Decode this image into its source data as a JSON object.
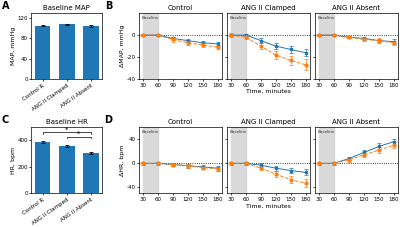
{
  "chart_data": [
    {
      "type": "bar",
      "title": "Baseline MAP",
      "ylabel": "MAP, mmHg",
      "categories": [
        "Control R",
        "ANG II Clamped",
        "ANG II Absent"
      ],
      "values": [
        105,
        108,
        104
      ],
      "errors": [
        1.5,
        1.2,
        1.8
      ],
      "ylim": [
        0,
        130
      ],
      "yticks": [
        0,
        40,
        80,
        120
      ],
      "annotations": [
        {
          "text": "A"
        }
      ]
    },
    {
      "type": "line",
      "title": "Control",
      "ylabel": "ΔMAP, mmHg",
      "x": [
        30,
        60,
        90,
        120,
        150,
        180
      ],
      "xlim": [
        22,
        188
      ],
      "xticks": [
        30,
        60,
        90,
        120,
        150,
        180
      ],
      "ylim": [
        -40,
        20
      ],
      "yticks": [
        -40,
        -20,
        0
      ],
      "reference_y": 0,
      "series": [
        {
          "marker": "square",
          "line_style": "solid",
          "values": [
            0,
            0,
            -3,
            -5,
            -7,
            -8
          ],
          "errors": [
            1,
            1,
            1.5,
            1.5,
            2,
            2
          ]
        },
        {
          "marker": "circle",
          "line_style": "dashed",
          "values": [
            0,
            0,
            -4,
            -7,
            -9,
            -11
          ],
          "errors": [
            1,
            1,
            2,
            2,
            2,
            2
          ]
        }
      ],
      "annotations": [
        {
          "text": "Baseline",
          "x": [
            30,
            60
          ]
        },
        {
          "text": "B"
        }
      ]
    },
    {
      "type": "line",
      "title": "ANG II Clamped",
      "xlabel": "Time, minutes",
      "tick_labels": "x",
      "x": [
        30,
        60,
        90,
        120,
        150,
        180
      ],
      "xlim": [
        22,
        188
      ],
      "xticks": [
        30,
        60,
        90,
        120,
        150,
        180
      ],
      "ylim": [
        -40,
        20
      ],
      "yticks": [
        -40,
        -20,
        0
      ],
      "reference_y": 0,
      "series": [
        {
          "marker": "square",
          "line_style": "solid",
          "values": [
            0,
            0,
            -5,
            -10,
            -13,
            -16
          ],
          "errors": [
            1,
            1,
            2,
            2.5,
            3,
            3
          ]
        },
        {
          "marker": "circle",
          "line_style": "dashed",
          "values": [
            0,
            -2,
            -10,
            -18,
            -23,
            -27
          ],
          "errors": [
            2,
            2,
            3,
            4,
            4,
            5
          ]
        }
      ],
      "annotations": [
        {
          "text": "Baseline",
          "x": [
            30,
            60
          ]
        }
      ]
    },
    {
      "type": "line",
      "title": "ANG II Absent",
      "tick_labels": "x",
      "x": [
        30,
        60,
        90,
        120,
        150,
        180
      ],
      "xlim": [
        22,
        188
      ],
      "xticks": [
        30,
        60,
        90,
        120,
        150,
        180
      ],
      "ylim": [
        -40,
        20
      ],
      "yticks": [
        -40,
        -20,
        0
      ],
      "reference_y": 0,
      "series": [
        {
          "marker": "square",
          "line_style": "solid",
          "values": [
            0,
            0,
            -2,
            -3,
            -5,
            -6
          ],
          "errors": [
            1,
            1,
            1,
            1.5,
            1.5,
            2
          ]
        },
        {
          "marker": "circle",
          "line_style": "dashed",
          "values": [
            0,
            0,
            -2,
            -4,
            -5,
            -7
          ],
          "errors": [
            1,
            1,
            1,
            1.5,
            2,
            2
          ]
        }
      ],
      "annotations": [
        {
          "text": "Baseline",
          "x": [
            30,
            60
          ]
        }
      ]
    },
    {
      "type": "bar",
      "title": "Baseline HR",
      "ylabel": "HR, bpm",
      "categories": [
        "Control R",
        "ANG II Clamped",
        "ANG II Absent"
      ],
      "values": [
        390,
        360,
        305
      ],
      "errors": [
        8,
        7,
        10
      ],
      "ylim": [
        0,
        500
      ],
      "yticks": [
        0,
        200,
        400
      ],
      "annotations": [
        {
          "text": "C"
        },
        {
          "text": "*",
          "between": [
            "Control R",
            "ANG II Absent"
          ],
          "y": 450,
          "height": 10
        },
        {
          "text": "*",
          "between": [
            "ANG II Clamped",
            "ANG II Absent"
          ],
          "y": 415,
          "height": 10
        }
      ]
    },
    {
      "type": "line",
      "title": "Control",
      "ylabel": "ΔHR, bpm",
      "x": [
        30,
        60,
        90,
        120,
        150,
        180
      ],
      "xlim": [
        22,
        188
      ],
      "xticks": [
        30,
        60,
        90,
        120,
        150,
        180
      ],
      "ylim": [
        -50,
        60
      ],
      "yticks": [
        -40,
        0,
        40
      ],
      "reference_y": 0,
      "series": [
        {
          "marker": "square",
          "line_style": "solid",
          "values": [
            0,
            0,
            -2,
            -4,
            -6,
            -8
          ],
          "errors": [
            2,
            2,
            2,
            3,
            3,
            4
          ]
        },
        {
          "marker": "circle",
          "line_style": "dashed",
          "values": [
            0,
            0,
            -2,
            -4,
            -7,
            -9
          ],
          "errors": [
            2,
            2,
            2,
            3,
            3,
            3
          ]
        }
      ],
      "annotations": [
        {
          "text": "Baseline",
          "x": [
            30,
            60
          ]
        },
        {
          "text": "D"
        }
      ]
    },
    {
      "type": "line",
      "title": "ANG II Clamped",
      "xlabel": "Time, minutes",
      "tick_labels": "x",
      "x": [
        30,
        60,
        90,
        120,
        150,
        180
      ],
      "xlim": [
        22,
        188
      ],
      "xticks": [
        30,
        60,
        90,
        120,
        150,
        180
      ],
      "ylim": [
        -50,
        60
      ],
      "yticks": [
        -40,
        0,
        40
      ],
      "reference_y": 0,
      "series": [
        {
          "marker": "square",
          "line_style": "solid",
          "values": [
            0,
            0,
            -3,
            -8,
            -12,
            -15
          ],
          "errors": [
            2,
            2,
            3,
            4,
            4,
            5
          ]
        },
        {
          "marker": "circle",
          "line_style": "dashed",
          "values": [
            0,
            0,
            -8,
            -18,
            -27,
            -33
          ],
          "errors": [
            2,
            2,
            3,
            5,
            6,
            7
          ]
        }
      ],
      "annotations": [
        {
          "text": "Baseline",
          "x": [
            30,
            60
          ]
        }
      ]
    },
    {
      "type": "line",
      "title": "ANG II Absent",
      "tick_labels": "x",
      "x": [
        30,
        60,
        90,
        120,
        150,
        180
      ],
      "xlim": [
        22,
        188
      ],
      "xticks": [
        30,
        60,
        90,
        120,
        150,
        180
      ],
      "ylim": [
        -50,
        60
      ],
      "yticks": [
        -40,
        0,
        40
      ],
      "reference_y": 0,
      "series": [
        {
          "marker": "square",
          "line_style": "solid",
          "values": [
            0,
            0,
            8,
            18,
            28,
            36
          ],
          "errors": [
            2,
            2,
            3,
            4,
            5,
            5
          ]
        },
        {
          "marker": "circle",
          "line_style": "dashed",
          "values": [
            0,
            0,
            6,
            14,
            22,
            30
          ],
          "errors": [
            2,
            2,
            3,
            4,
            5,
            5
          ]
        }
      ],
      "annotations": [
        {
          "text": "Baseline",
          "x": [
            30,
            60
          ]
        }
      ]
    }
  ]
}
